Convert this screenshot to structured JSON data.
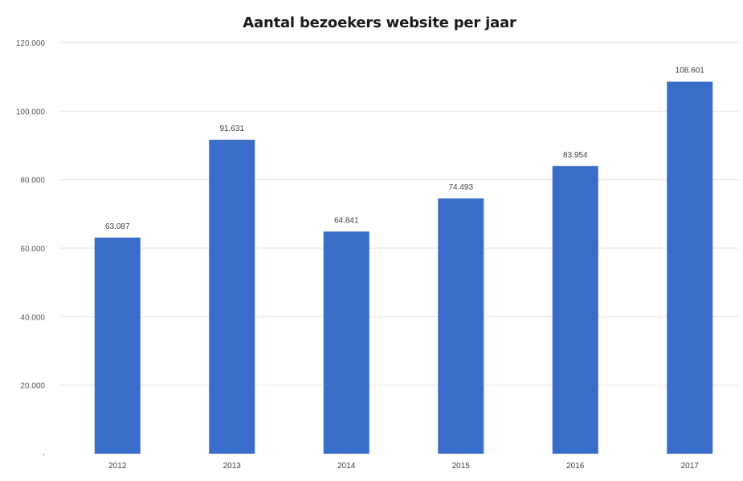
{
  "chart_data": {
    "type": "bar",
    "title": "Aantal bezoekers website per jaar",
    "xlabel": "",
    "ylabel": "",
    "categories": [
      "2012",
      "2013",
      "2014",
      "2015",
      "2016",
      "2017"
    ],
    "values": [
      63087,
      91631,
      64841,
      74493,
      83954,
      108601
    ],
    "value_labels": [
      "63.087",
      "91.631",
      "64.841",
      "74.493",
      "83.954",
      "108.601"
    ],
    "ylim": [
      0,
      120000
    ],
    "yticks": [
      0,
      20000,
      40000,
      60000,
      80000,
      100000,
      120000
    ],
    "ytick_labels": [
      "-",
      "20.000",
      "40.000",
      "60.000",
      "80.000",
      "100.000",
      "120.000"
    ],
    "grid": true,
    "legend": "none",
    "bar_color": "#3A6CC9",
    "grid_color": "#e3e3e3"
  }
}
